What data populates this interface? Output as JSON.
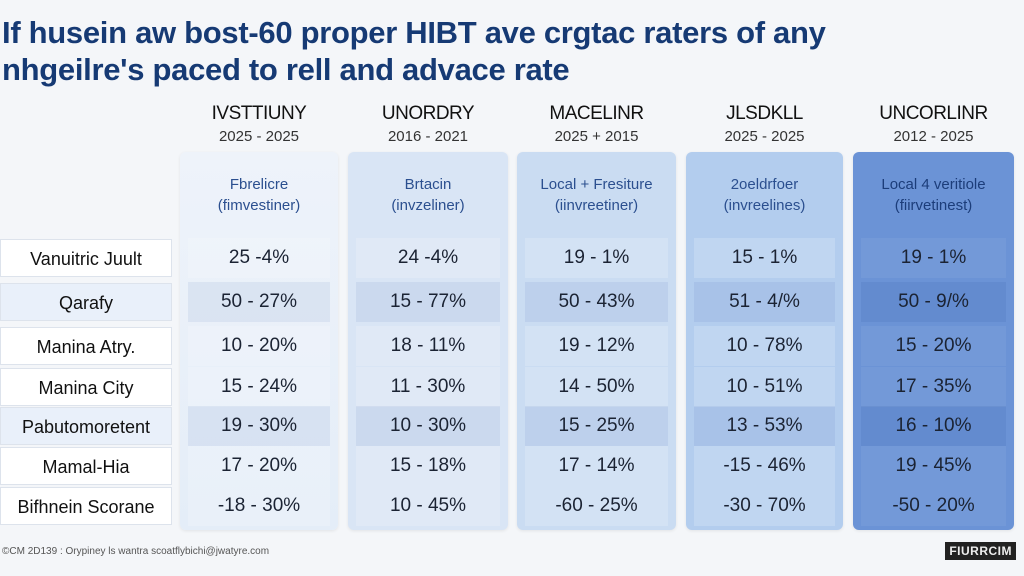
{
  "title": {
    "line1": "If husein aw bost-60 proper HIBT ave crgtac raters of any",
    "line2": "nhgeilre's paced to rell and advace rate"
  },
  "columns": [
    {
      "name": "IVSTTIUNY",
      "years": "2025 - 2025",
      "sub1": "Fbrelicre",
      "sub2": "(fimvestiner)",
      "color": "#e4edf8",
      "cells": [
        "25 -4%",
        "50  - 27%",
        "10  - 20%",
        "15  - 24%",
        "19  - 30%",
        "17  - 20%",
        "-18  - 30%"
      ]
    },
    {
      "name": "UNORDRY",
      "years": "2016 - 2021",
      "sub1": "Brtacin",
      "sub2": "(invzeliner)",
      "color": "#d9e5f5",
      "cells": [
        "24 -4%",
        "15  - 77%",
        "18  - 11%",
        "11  - 30%",
        "10  - 30%",
        "15  - 18%",
        "10  - 45%"
      ]
    },
    {
      "name": "MACELINR",
      "years": "2025 + 2015",
      "sub1": "Local + Fresiture",
      "sub2": "(iinvreetiner)",
      "color": "#cadcf2",
      "cells": [
        "19 - 1%",
        "50  - 43%",
        "19  - 12%",
        "14  - 50%",
        "15  - 25%",
        "17  - 14%",
        "-60  - 25%"
      ]
    },
    {
      "name": "JLSDKLL",
      "years": "2025 - 2025",
      "sub1": "2oeldrfoer",
      "sub2": "(invreelines)",
      "color": "#b3cdee",
      "cells": [
        "15 - 1%",
        "51  - 4/%",
        "10  - 78%",
        "10  - 51%",
        "13  - 53%",
        "-15  - 46%",
        "-30  - 70%"
      ]
    },
    {
      "name": "UNCORLINR",
      "years": "2012 - 2025",
      "sub1": "Local 4 veritiole",
      "sub2": "(fiirvetinest)",
      "color": "#6b93d6",
      "cells": [
        "19 - 1%",
        "50  - 9/%",
        "15  - 20%",
        "17  - 35%",
        "16  - 10%",
        "19  - 45%",
        "-50  - 20%"
      ]
    }
  ],
  "rows": [
    "Vanuitric Juult",
    "Qarafy",
    "Manina Atry.",
    "Manina City",
    "Pabutomoretent",
    "Mamal-Hia",
    "Bifhnein Scorane"
  ],
  "footer": "©CM 2D139 : Orypiney ls wantra scoatflybichi@jwatyre.com",
  "logo": "FIURRCIM"
}
